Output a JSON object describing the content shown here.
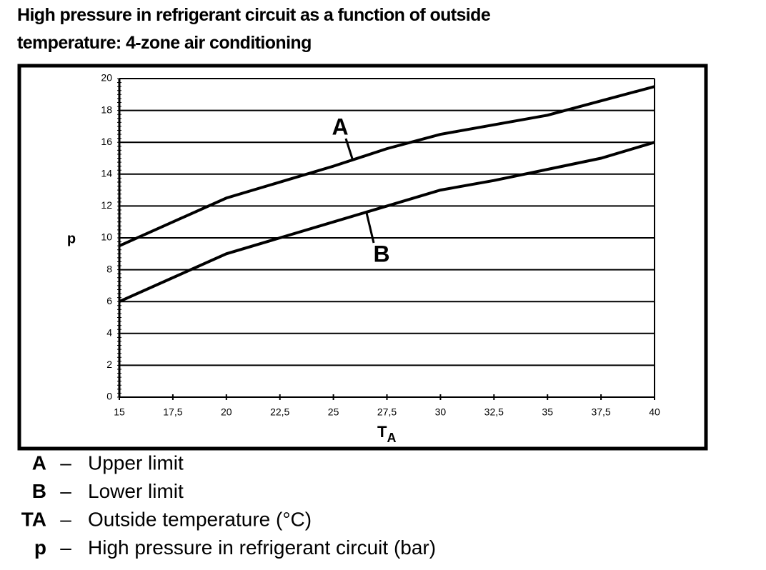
{
  "chart_data": {
    "type": "line",
    "title": "High pressure in refrigerant circuit as a function of outside temperature: 4-zone air conditioning",
    "y_label": "p",
    "x_label": "T",
    "x_label_subscript": "A",
    "x": [
      15,
      17.5,
      20,
      22.5,
      25,
      27.5,
      30,
      32.5,
      35,
      37.5,
      40
    ],
    "series": [
      {
        "name": "A",
        "color": "#000000",
        "values": [
          9.5,
          11,
          12.5,
          13.5,
          14.5,
          15.6,
          16.5,
          17.1,
          17.7,
          18.6,
          19.5
        ]
      },
      {
        "name": "B",
        "color": "#000000",
        "values": [
          6,
          7.5,
          9,
          10,
          11,
          12,
          13,
          13.6,
          14.3,
          15,
          16
        ]
      }
    ],
    "xlim": [
      15,
      40
    ],
    "xticks": [
      15,
      {
        "value": 17.5,
        "label": "17,5"
      },
      20,
      {
        "value": 22.5,
        "label": "22,5"
      },
      25,
      {
        "value": 27.5,
        "label": "27,5"
      },
      30,
      {
        "value": 32.5,
        "label": "32,5"
      },
      35,
      {
        "value": 37.5,
        "label": "37,5"
      },
      40
    ],
    "ylim": [
      0,
      20
    ],
    "yticks": [
      0,
      2,
      4,
      6,
      8,
      10,
      12,
      14,
      16,
      18,
      20
    ],
    "grid": true,
    "legend_separator": "–",
    "legend_notes": [
      {
        "key": "A",
        "text": "Upper limit"
      },
      {
        "key": "B",
        "text": "Lower limit"
      },
      {
        "key": "TA",
        "text": "Outside temperature (°C)"
      },
      {
        "key": "p",
        "text": "High pressure in refrigerant circuit (bar)"
      }
    ]
  }
}
